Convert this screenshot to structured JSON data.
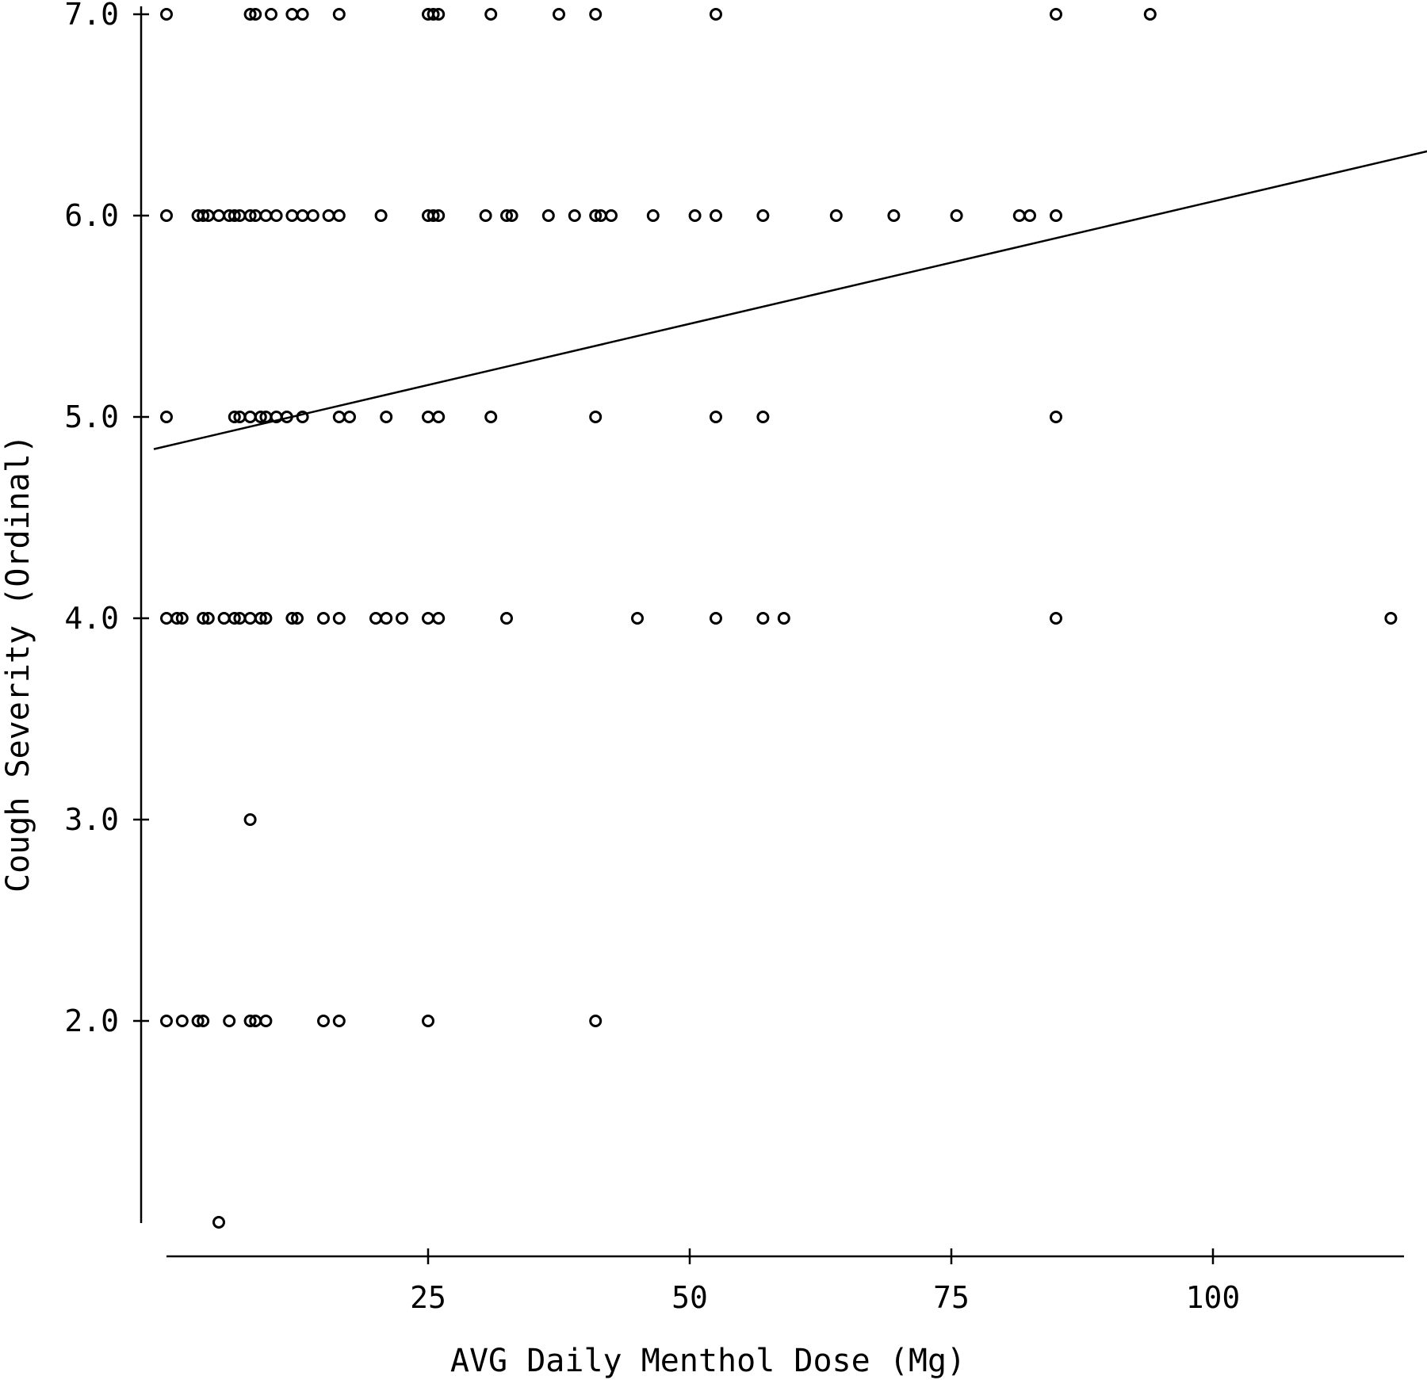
{
  "chart_data": {
    "type": "scatter",
    "title": "",
    "xlabel": "AVG Daily Menthol Dose (Mg)",
    "ylabel": "Cough Severity (Ordinal)",
    "xlim": [
      0,
      119
    ],
    "ylim": [
      1,
      7
    ],
    "xticks": [
      25,
      50,
      75,
      100
    ],
    "xtick_labels": [
      "25",
      "50",
      "75",
      "100"
    ],
    "yticks": [
      2,
      3,
      4,
      5,
      6,
      7
    ],
    "ytick_labels": [
      "2.0",
      "3.0",
      "4.0",
      "5.0",
      "6.0",
      "7.0"
    ],
    "grid": false,
    "legend": "none",
    "trendline": {
      "x": [
        0,
        119
      ],
      "y": [
        4.84,
        6.33
      ]
    },
    "points": [
      {
        "x": 0,
        "y": 7
      },
      {
        "x": 8,
        "y": 7
      },
      {
        "x": 8.5,
        "y": 7
      },
      {
        "x": 10,
        "y": 7
      },
      {
        "x": 12,
        "y": 7
      },
      {
        "x": 13,
        "y": 7
      },
      {
        "x": 16.5,
        "y": 7
      },
      {
        "x": 25,
        "y": 7
      },
      {
        "x": 25.5,
        "y": 7
      },
      {
        "x": 26,
        "y": 7
      },
      {
        "x": 31,
        "y": 7
      },
      {
        "x": 37.5,
        "y": 7
      },
      {
        "x": 41,
        "y": 7
      },
      {
        "x": 52.5,
        "y": 7
      },
      {
        "x": 85,
        "y": 7
      },
      {
        "x": 94,
        "y": 7
      },
      {
        "x": 0,
        "y": 6
      },
      {
        "x": 3,
        "y": 6
      },
      {
        "x": 3.5,
        "y": 6
      },
      {
        "x": 4,
        "y": 6
      },
      {
        "x": 5,
        "y": 6
      },
      {
        "x": 6,
        "y": 6
      },
      {
        "x": 6.5,
        "y": 6
      },
      {
        "x": 7,
        "y": 6
      },
      {
        "x": 8,
        "y": 6
      },
      {
        "x": 8.5,
        "y": 6
      },
      {
        "x": 9.5,
        "y": 6
      },
      {
        "x": 10.5,
        "y": 6
      },
      {
        "x": 12,
        "y": 6
      },
      {
        "x": 13,
        "y": 6
      },
      {
        "x": 14,
        "y": 6
      },
      {
        "x": 15.5,
        "y": 6
      },
      {
        "x": 16.5,
        "y": 6
      },
      {
        "x": 20.5,
        "y": 6
      },
      {
        "x": 25,
        "y": 6
      },
      {
        "x": 25.5,
        "y": 6
      },
      {
        "x": 26,
        "y": 6
      },
      {
        "x": 30.5,
        "y": 6
      },
      {
        "x": 32.5,
        "y": 6
      },
      {
        "x": 33,
        "y": 6
      },
      {
        "x": 36.5,
        "y": 6
      },
      {
        "x": 39,
        "y": 6
      },
      {
        "x": 41,
        "y": 6
      },
      {
        "x": 41.5,
        "y": 6
      },
      {
        "x": 42.5,
        "y": 6
      },
      {
        "x": 46.5,
        "y": 6
      },
      {
        "x": 50.5,
        "y": 6
      },
      {
        "x": 52.5,
        "y": 6
      },
      {
        "x": 57,
        "y": 6
      },
      {
        "x": 64,
        "y": 6
      },
      {
        "x": 69.5,
        "y": 6
      },
      {
        "x": 75.5,
        "y": 6
      },
      {
        "x": 81.5,
        "y": 6
      },
      {
        "x": 82.5,
        "y": 6
      },
      {
        "x": 85,
        "y": 6
      },
      {
        "x": 0,
        "y": 5
      },
      {
        "x": 6.5,
        "y": 5
      },
      {
        "x": 7,
        "y": 5
      },
      {
        "x": 8,
        "y": 5
      },
      {
        "x": 9,
        "y": 5
      },
      {
        "x": 9.5,
        "y": 5
      },
      {
        "x": 10.5,
        "y": 5
      },
      {
        "x": 11.5,
        "y": 5
      },
      {
        "x": 13,
        "y": 5
      },
      {
        "x": 16.5,
        "y": 5
      },
      {
        "x": 17.5,
        "y": 5
      },
      {
        "x": 21,
        "y": 5
      },
      {
        "x": 25,
        "y": 5
      },
      {
        "x": 26,
        "y": 5
      },
      {
        "x": 31,
        "y": 5
      },
      {
        "x": 41,
        "y": 5
      },
      {
        "x": 52.5,
        "y": 5
      },
      {
        "x": 57,
        "y": 5
      },
      {
        "x": 85,
        "y": 5
      },
      {
        "x": 0,
        "y": 4
      },
      {
        "x": 1,
        "y": 4
      },
      {
        "x": 1.5,
        "y": 4
      },
      {
        "x": 3.5,
        "y": 4
      },
      {
        "x": 4,
        "y": 4
      },
      {
        "x": 5.5,
        "y": 4
      },
      {
        "x": 6.5,
        "y": 4
      },
      {
        "x": 7,
        "y": 4
      },
      {
        "x": 8,
        "y": 4
      },
      {
        "x": 9,
        "y": 4
      },
      {
        "x": 9.5,
        "y": 4
      },
      {
        "x": 12,
        "y": 4
      },
      {
        "x": 12.5,
        "y": 4
      },
      {
        "x": 15,
        "y": 4
      },
      {
        "x": 16.5,
        "y": 4
      },
      {
        "x": 20,
        "y": 4
      },
      {
        "x": 21,
        "y": 4
      },
      {
        "x": 22.5,
        "y": 4
      },
      {
        "x": 25,
        "y": 4
      },
      {
        "x": 26,
        "y": 4
      },
      {
        "x": 32.5,
        "y": 4
      },
      {
        "x": 45,
        "y": 4
      },
      {
        "x": 52.5,
        "y": 4
      },
      {
        "x": 57,
        "y": 4
      },
      {
        "x": 59,
        "y": 4
      },
      {
        "x": 85,
        "y": 4
      },
      {
        "x": 117,
        "y": 4
      },
      {
        "x": 8,
        "y": 3
      },
      {
        "x": 0,
        "y": 2
      },
      {
        "x": 1.5,
        "y": 2
      },
      {
        "x": 3,
        "y": 2
      },
      {
        "x": 3.5,
        "y": 2
      },
      {
        "x": 6,
        "y": 2
      },
      {
        "x": 8,
        "y": 2
      },
      {
        "x": 8.5,
        "y": 2
      },
      {
        "x": 9.5,
        "y": 2
      },
      {
        "x": 15,
        "y": 2
      },
      {
        "x": 16.5,
        "y": 2
      },
      {
        "x": 25,
        "y": 2
      },
      {
        "x": 41,
        "y": 2
      },
      {
        "x": 5,
        "y": 1
      }
    ]
  }
}
